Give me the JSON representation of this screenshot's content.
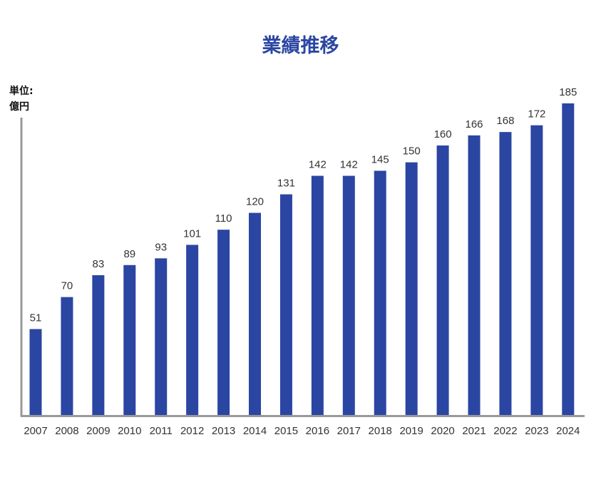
{
  "chart_data": {
    "type": "bar",
    "title": "業績推移",
    "ylabel_line1": "単位:",
    "ylabel_line2": "億円",
    "xlabel": "",
    "categories": [
      "2007",
      "2008",
      "2009",
      "2010",
      "2011",
      "2012",
      "2013",
      "2014",
      "2015",
      "2016",
      "2017",
      "2018",
      "2019",
      "2020",
      "2021",
      "2022",
      "2023",
      "2024"
    ],
    "values": [
      51,
      70,
      83,
      89,
      93,
      101,
      110,
      120,
      131,
      142,
      142,
      145,
      150,
      160,
      166,
      168,
      172,
      185
    ],
    "ylim": [
      0,
      185
    ],
    "grid": false,
    "data_labels": true,
    "bar_color": "#2B45A3",
    "axis_color": "#999999",
    "title_color": "#2B47A3"
  }
}
